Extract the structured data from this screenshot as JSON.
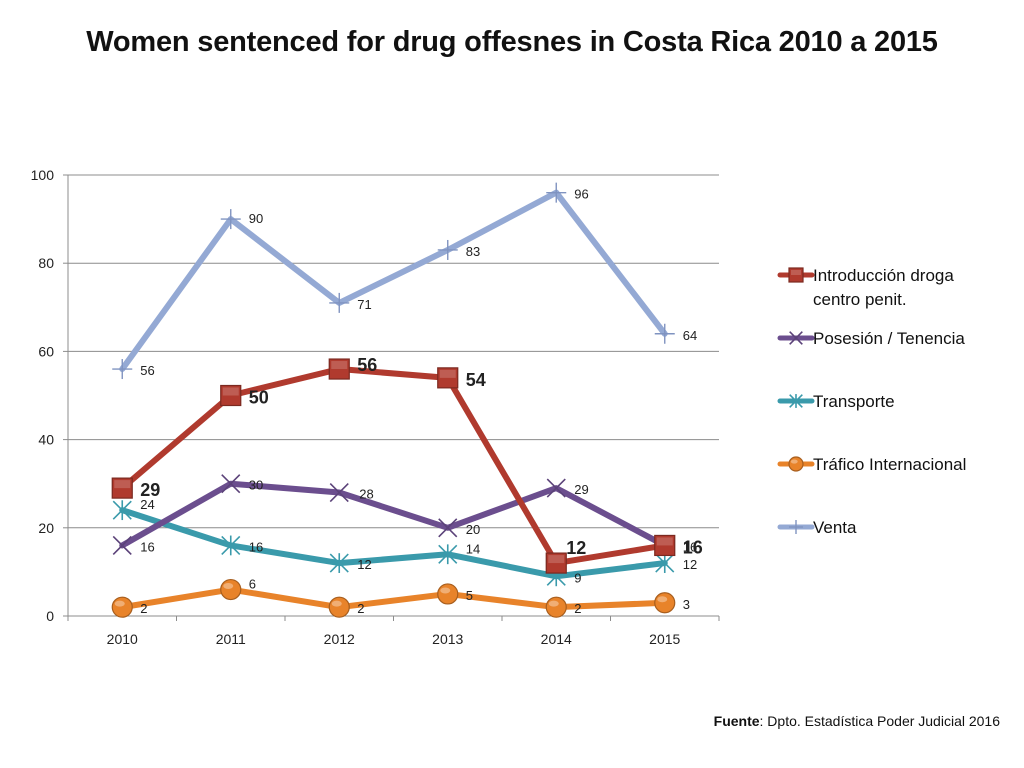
{
  "title": "Women sentenced for drug offesnes in Costa Rica 2010 a 2015",
  "source": {
    "label": "Fuente",
    "text": ": Dpto. Estadística Poder Judicial 2016"
  },
  "chart_data": {
    "type": "line",
    "title": "Women sentenced for drug offesnes in Costa Rica 2010 a 2015",
    "xlabel": "",
    "ylabel": "",
    "ylim": [
      0,
      100
    ],
    "yticks": [
      0,
      20,
      40,
      60,
      80,
      100
    ],
    "grid": true,
    "legend_position": "right",
    "categories": [
      "2010",
      "2011",
      "2012",
      "2013",
      "2014",
      "2015"
    ],
    "series": [
      {
        "name": "Introducción droga centro penit.",
        "legend_lines": [
          "Introducción droga",
          "centro penit."
        ],
        "values": [
          29,
          50,
          56,
          54,
          12,
          16
        ],
        "color": "#b03a2e",
        "marker": "square",
        "bold_labels": true
      },
      {
        "name": "Posesión / Tenencia",
        "legend_lines": [
          "Posesión / Tenencia"
        ],
        "values": [
          16,
          30,
          28,
          20,
          29,
          16
        ],
        "color": "#6b4e8e",
        "marker": "x",
        "bold_labels": false
      },
      {
        "name": "Transporte",
        "legend_lines": [
          "Transporte"
        ],
        "values": [
          24,
          16,
          12,
          14,
          9,
          12
        ],
        "color": "#3a9aab",
        "marker": "star",
        "bold_labels": false
      },
      {
        "name": "Tráfico Internacional",
        "legend_lines": [
          "Tráfico Internacional"
        ],
        "values": [
          2,
          6,
          2,
          5,
          2,
          3
        ],
        "color": "#e8832a",
        "marker": "circle",
        "bold_labels": false
      },
      {
        "name": "Venta",
        "legend_lines": [
          "Venta"
        ],
        "values": [
          56,
          90,
          71,
          83,
          96,
          64
        ],
        "color": "#94a9d4",
        "marker": "plus",
        "bold_labels": false
      }
    ]
  }
}
